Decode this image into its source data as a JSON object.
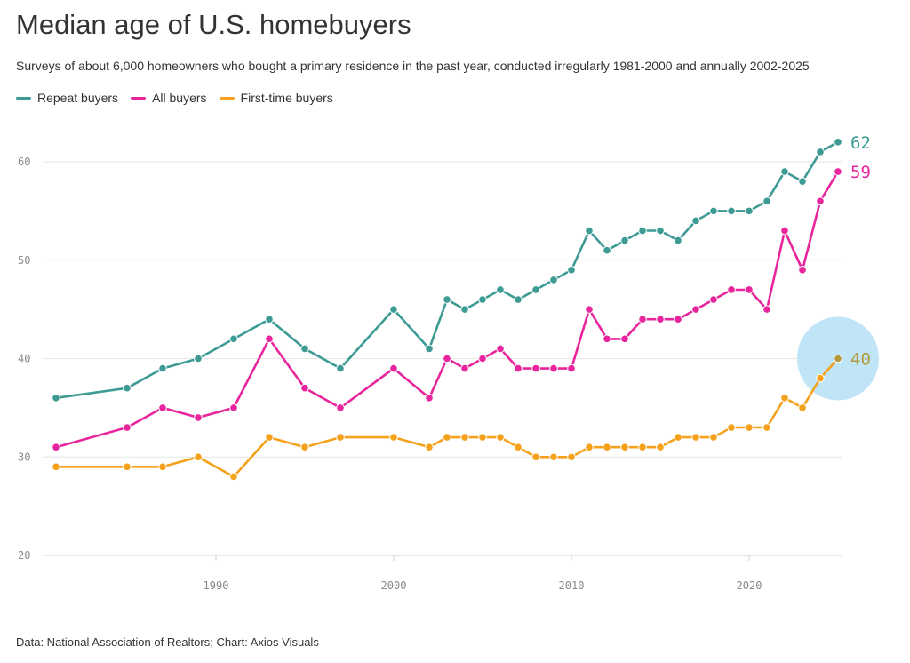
{
  "header": {
    "title": "Median age of U.S. homebuyers",
    "subtitle": "Surveys of about 6,000 homeowners who bought a primary residence in the past year, conducted irregularly 1981-2000 and annually 2002-2025"
  },
  "footer": {
    "source": "Data: National Association of Realtors; Chart: Axios Visuals"
  },
  "chart_data": {
    "type": "line",
    "title": "Median age of U.S. homebuyers",
    "subtitle": "Surveys of about 6,000 homeowners who bought a primary residence in the past year, conducted irregularly 1981-2000 and annually 2002-2025",
    "xlabel": "",
    "ylabel": "",
    "xlim": [
      1980,
      2026
    ],
    "ylim": [
      20,
      65
    ],
    "x_ticks": [
      1990,
      2000,
      2010,
      2020
    ],
    "y_ticks": [
      20,
      30,
      40,
      50,
      60
    ],
    "grid": "horizontal",
    "legend_position": "top-left",
    "x": [
      1981,
      1985,
      1987,
      1989,
      1991,
      1993,
      1995,
      1997,
      2000,
      2002,
      2003,
      2004,
      2005,
      2006,
      2007,
      2008,
      2009,
      2010,
      2011,
      2012,
      2013,
      2014,
      2015,
      2016,
      2017,
      2018,
      2019,
      2020,
      2021,
      2022,
      2023,
      2024,
      2025
    ],
    "series": [
      {
        "name": "Repeat buyers",
        "color": "#3d9b94",
        "end_label": "62",
        "values": [
          36,
          37,
          39,
          40,
          42,
          44,
          41,
          39,
          45,
          41,
          46,
          45,
          46,
          47,
          46,
          47,
          48,
          49,
          53,
          51,
          52,
          53,
          53,
          52,
          54,
          55,
          55,
          55,
          56,
          59,
          58,
          61,
          62
        ]
      },
      {
        "name": "All buyers",
        "color": "#e8259c",
        "end_label": "59",
        "values": [
          31,
          33,
          35,
          34,
          35,
          42,
          37,
          35,
          39,
          36,
          40,
          39,
          40,
          41,
          39,
          39,
          39,
          39,
          45,
          42,
          42,
          44,
          44,
          44,
          45,
          46,
          47,
          47,
          45,
          53,
          49,
          56,
          59
        ]
      },
      {
        "name": "First-time buyers",
        "color": "#f5a11c",
        "end_label": "40",
        "values": [
          29,
          29,
          29,
          30,
          28,
          32,
          31,
          32,
          32,
          31,
          32,
          32,
          32,
          32,
          31,
          30,
          30,
          30,
          31,
          31,
          31,
          31,
          31,
          32,
          32,
          32,
          33,
          33,
          33,
          36,
          35,
          38,
          40
        ]
      }
    ],
    "highlight": {
      "color": "#bfe5f7"
    },
    "end_label_color_first_time": "#b5993f"
  }
}
